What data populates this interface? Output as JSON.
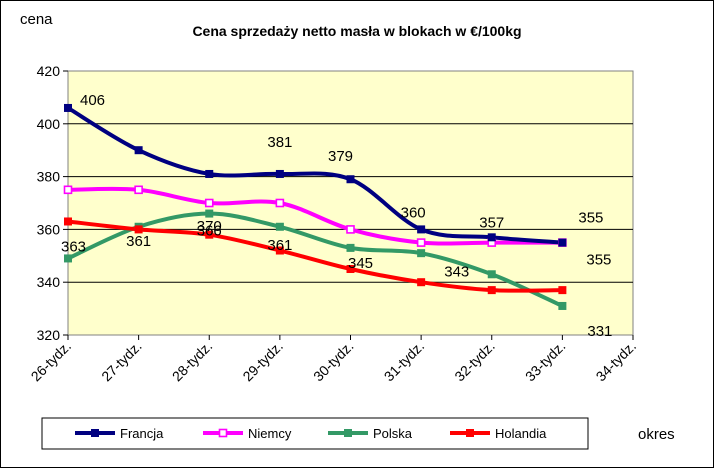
{
  "chart_data": {
    "type": "line",
    "title": "Cena sprzedaży netto masła  w blokach  w €/100kg",
    "ylabel": "cena",
    "xlabel": "okres",
    "categories": [
      "26-tydz.",
      "27-tydz.",
      "28-tydz.",
      "29-tydz.",
      "30-tydz.",
      "31-tydz.",
      "32-tydz.",
      "33-tydz.",
      "34-tydz."
    ],
    "ylim": [
      320,
      420
    ],
    "yticks": [
      320,
      340,
      360,
      380,
      400,
      420
    ],
    "grid": true,
    "legend_position": "bottom",
    "series": [
      {
        "name": "Francja",
        "color": "#000080",
        "marker": "filled-square",
        "values": [
          406,
          390,
          381,
          381,
          379,
          360,
          357,
          355,
          null
        ]
      },
      {
        "name": "Niemcy",
        "color": "#FF00FF",
        "marker": "open-square",
        "values": [
          375,
          375,
          370,
          370,
          360,
          355,
          355,
          355,
          null
        ]
      },
      {
        "name": "Polska",
        "color": "#339966",
        "marker": "filled-square",
        "values": [
          349,
          361,
          366,
          361,
          353,
          351,
          343,
          331,
          null
        ]
      },
      {
        "name": "Holandia",
        "color": "#FF0000",
        "marker": "filled-square",
        "values": [
          363,
          360,
          358,
          352,
          345,
          340,
          337,
          337,
          null
        ]
      }
    ],
    "data_labels": [
      {
        "text": "406",
        "series": "Francja",
        "index": 0
      },
      {
        "text": "381",
        "series": "Francja",
        "index": 3
      },
      {
        "text": "379",
        "series": "Francja",
        "index": 4
      },
      {
        "text": "360",
        "series": "Francja",
        "index": 5
      },
      {
        "text": "357",
        "series": "Francja",
        "index": 6
      },
      {
        "text": "355",
        "series": "Francja",
        "index": 7
      },
      {
        "text": "370",
        "series": "Niemcy",
        "index": 2
      },
      {
        "text": "355",
        "series": "Niemcy",
        "index": 7
      },
      {
        "text": "361",
        "series": "Polska",
        "index": 1
      },
      {
        "text": "366",
        "series": "Polska",
        "index": 2
      },
      {
        "text": "361",
        "series": "Polska",
        "index": 3
      },
      {
        "text": "343",
        "series": "Polska",
        "index": 6
      },
      {
        "text": "331",
        "series": "Polska",
        "index": 7
      },
      {
        "text": "363",
        "series": "Holandia",
        "index": 0
      },
      {
        "text": "345",
        "series": "Holandia",
        "index": 4
      }
    ],
    "plot_background": "#FFFFCC"
  }
}
